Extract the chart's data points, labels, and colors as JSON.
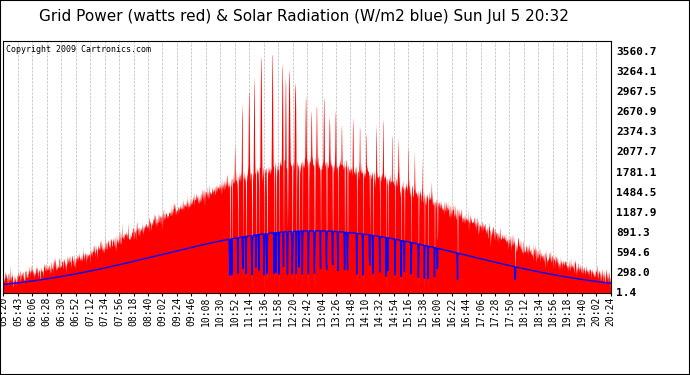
{
  "title": "Grid Power (watts red) & Solar Radiation (W/m2 blue) Sun Jul 5 20:32",
  "copyright": "Copyright 2009 Cartronics.com",
  "background_color": "#ffffff",
  "plot_bg_color": "#ffffff",
  "grid_color": "#aaaaaa",
  "y_ticks": [
    1.4,
    298.0,
    594.6,
    891.3,
    1187.9,
    1484.5,
    1781.1,
    2077.7,
    2374.3,
    2670.9,
    2967.5,
    3264.1,
    3560.7
  ],
  "x_labels": [
    "05:20",
    "05:43",
    "06:06",
    "06:28",
    "06:30",
    "06:52",
    "07:12",
    "07:34",
    "07:56",
    "08:18",
    "08:40",
    "09:02",
    "09:24",
    "09:46",
    "10:08",
    "10:30",
    "10:52",
    "11:14",
    "11:36",
    "11:58",
    "12:20",
    "12:42",
    "13:04",
    "13:26",
    "13:48",
    "14:10",
    "14:32",
    "14:54",
    "15:16",
    "15:38",
    "16:00",
    "16:22",
    "16:44",
    "17:06",
    "17:28",
    "17:50",
    "18:12",
    "18:34",
    "18:56",
    "19:18",
    "19:40",
    "20:02",
    "20:24"
  ],
  "red_color": "#ff0000",
  "blue_color": "#0000ff",
  "title_fontsize": 11,
  "tick_fontsize": 7,
  "y_tick_fontsize": 8
}
